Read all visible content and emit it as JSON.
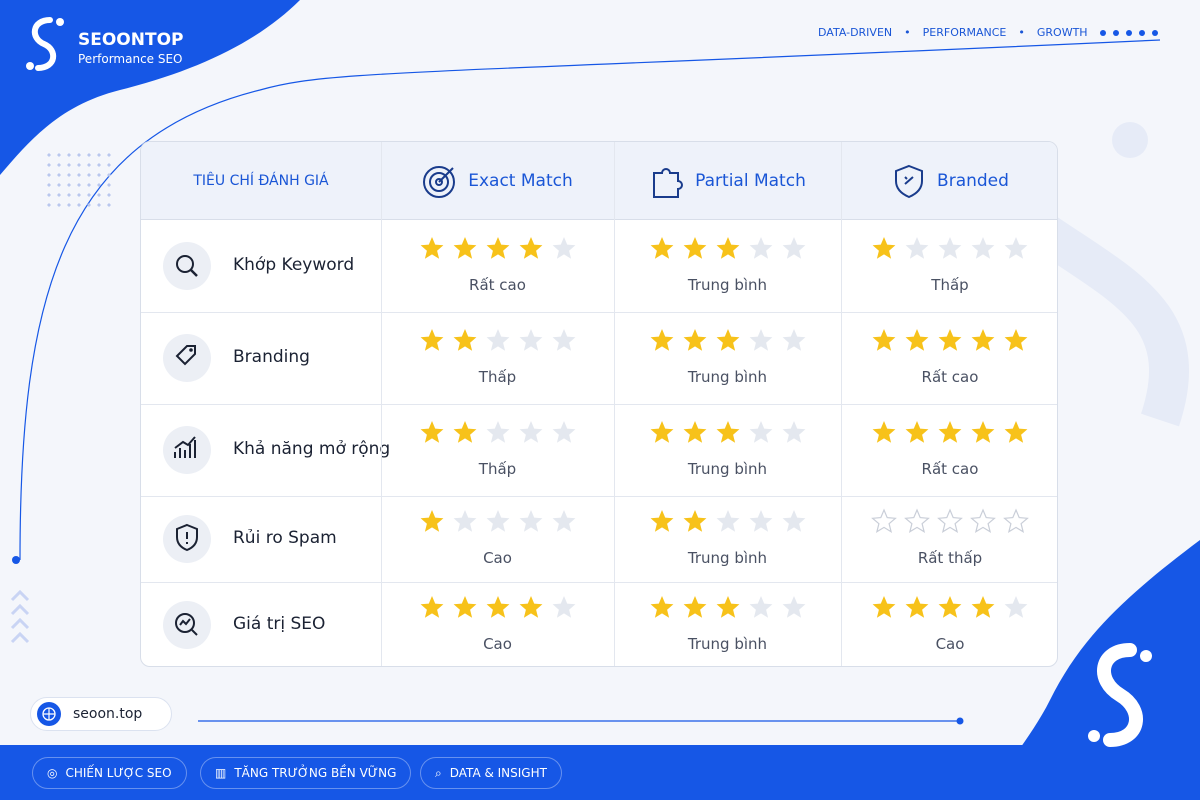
{
  "brand": {
    "name": "SEOONTOP",
    "tagline": "Performance SEO"
  },
  "top_nav": [
    "DATA-DRIVEN",
    "PERFORMANCE",
    "GROWTH"
  ],
  "table": {
    "header": [
      "TIÊU CHÍ ĐÁNH GIÁ",
      "Exact Match",
      "Partial Match",
      "Branded"
    ],
    "stars_max": 5,
    "rows": [
      {
        "criterion": "Khớp Keyword",
        "cells": [
          {
            "stars": 4,
            "label": "Rất cao"
          },
          {
            "stars": 3,
            "label": "Trung bình"
          },
          {
            "stars": 1,
            "label": "Thấp"
          }
        ]
      },
      {
        "criterion": "Branding",
        "cells": [
          {
            "stars": 2,
            "label": "Thấp"
          },
          {
            "stars": 3,
            "label": "Trung bình"
          },
          {
            "stars": 5,
            "label": "Rất cao"
          }
        ]
      },
      {
        "criterion": "Khả năng mở rộng",
        "cells": [
          {
            "stars": 2,
            "label": "Thấp"
          },
          {
            "stars": 3,
            "label": "Trung bình"
          },
          {
            "stars": 5,
            "label": "Rất cao"
          }
        ]
      },
      {
        "criterion": "Rủi ro Spam",
        "cells": [
          {
            "stars": 1,
            "label": "Cao"
          },
          {
            "stars": 2,
            "label": "Trung bình"
          },
          {
            "stars": 0,
            "label": "Rất thấp"
          }
        ]
      },
      {
        "criterion": "Giá trị SEO",
        "cells": [
          {
            "stars": 4,
            "label": "Cao"
          },
          {
            "stars": 3,
            "label": "Trung bình"
          },
          {
            "stars": 4,
            "label": "Cao"
          }
        ]
      }
    ]
  },
  "footer": {
    "website": "seoon.top",
    "tags": [
      "CHIẾN LƯỢC SEO",
      "TĂNG TRƯỞNG BỀN VỮNG",
      "DATA & INSIGHT"
    ]
  }
}
